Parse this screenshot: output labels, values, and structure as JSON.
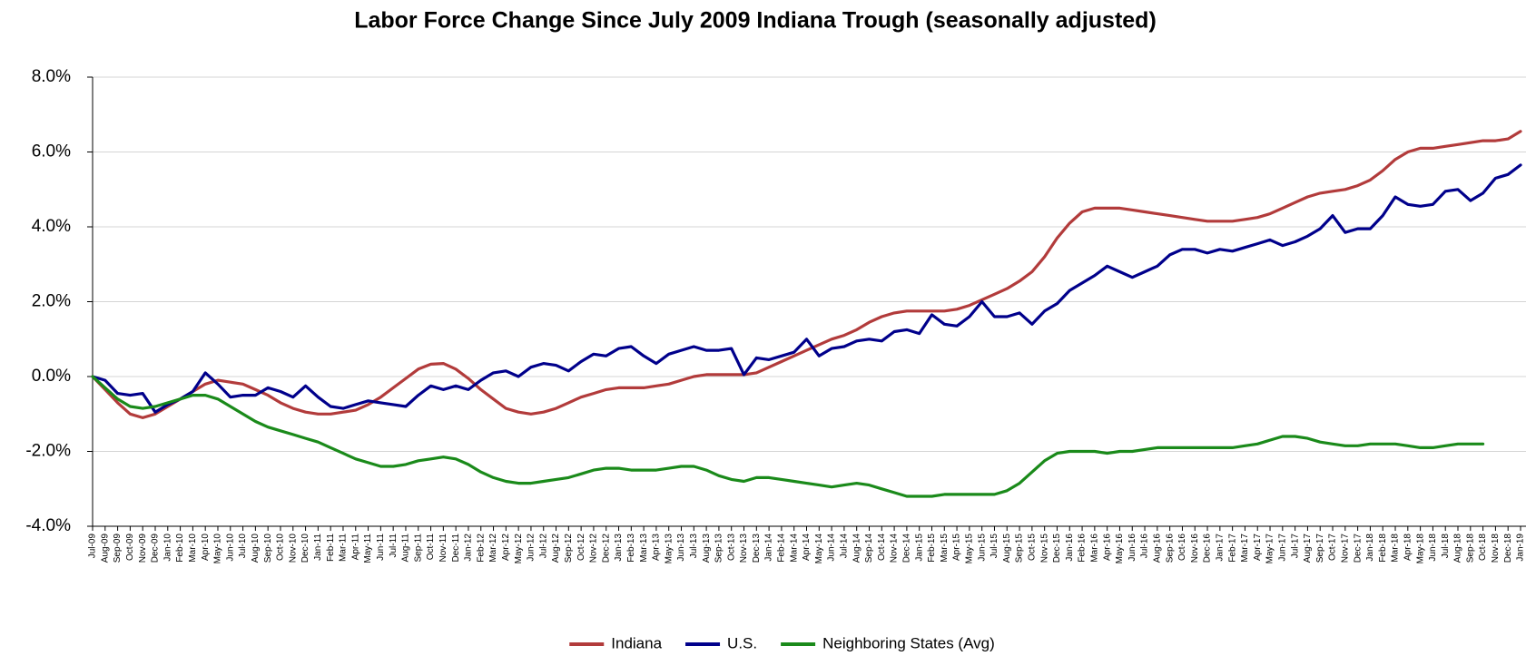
{
  "chart_data": {
    "type": "line",
    "title": "Labor Force Change Since July 2009 Indiana Trough (seasonally adjusted)",
    "categories": [
      "Jul-09",
      "Aug-09",
      "Sep-09",
      "Oct-09",
      "Nov-09",
      "Dec-09",
      "Jan-10",
      "Feb-10",
      "Mar-10",
      "Apr-10",
      "May-10",
      "Jun-10",
      "Jul-10",
      "Aug-10",
      "Sep-10",
      "Oct-10",
      "Nov-10",
      "Dec-10",
      "Jan-11",
      "Feb-11",
      "Mar-11",
      "Apr-11",
      "May-11",
      "Jun-11",
      "Jul-11",
      "Aug-11",
      "Sep-11",
      "Oct-11",
      "Nov-11",
      "Dec-11",
      "Jan-12",
      "Feb-12",
      "Mar-12",
      "Apr-12",
      "May-12",
      "Jun-12",
      "Jul-12",
      "Aug-12",
      "Sep-12",
      "Oct-12",
      "Nov-12",
      "Dec-12",
      "Jan-13",
      "Feb-13",
      "Mar-13",
      "Apr-13",
      "May-13",
      "Jun-13",
      "Jul-13",
      "Aug-13",
      "Sep-13",
      "Oct-13",
      "Nov-13",
      "Dec-13",
      "Jan-14",
      "Feb-14",
      "Mar-14",
      "Apr-14",
      "May-14",
      "Jun-14",
      "Jul-14",
      "Aug-14",
      "Sep-14",
      "Oct-14",
      "Nov-14",
      "Dec-14",
      "Jan-15",
      "Feb-15",
      "Mar-15",
      "Apr-15",
      "May-15",
      "Jun-15",
      "Jul-15",
      "Aug-15",
      "Sep-15",
      "Oct-15",
      "Nov-15",
      "Dec-15",
      "Jan-16",
      "Feb-16",
      "Mar-16",
      "Apr-16",
      "May-16",
      "Jun-16",
      "Jul-16",
      "Aug-16",
      "Sep-16",
      "Oct-16",
      "Nov-16",
      "Dec-16",
      "Jan-17",
      "Feb-17",
      "Mar-17",
      "Apr-17",
      "May-17",
      "Jun-17",
      "Jul-17",
      "Aug-17",
      "Sep-17",
      "Oct-17",
      "Nov-17",
      "Dec-17",
      "Jan-18",
      "Feb-18",
      "Mar-18",
      "Apr-18",
      "May-18",
      "Jun-18",
      "Jul-18",
      "Aug-18",
      "Sep-18",
      "Oct-18",
      "Nov-18",
      "Dec-18",
      "Jan-19"
    ],
    "series": [
      {
        "name": "Indiana",
        "color": "#b23b3b",
        "values": [
          0,
          -0.35,
          -0.7,
          -1.0,
          -1.1,
          -1.0,
          -0.8,
          -0.6,
          -0.4,
          -0.2,
          -0.1,
          -0.15,
          -0.2,
          -0.35,
          -0.5,
          -0.7,
          -0.85,
          -0.95,
          -1.0,
          -1.0,
          -0.95,
          -0.9,
          -0.75,
          -0.55,
          -0.3,
          -0.05,
          0.2,
          0.33,
          0.35,
          0.2,
          -0.05,
          -0.35,
          -0.6,
          -0.85,
          -0.95,
          -1.0,
          -0.95,
          -0.85,
          -0.7,
          -0.55,
          -0.45,
          -0.35,
          -0.3,
          -0.3,
          -0.3,
          -0.25,
          -0.2,
          -0.1,
          0.0,
          0.05,
          0.05,
          0.05,
          0.05,
          0.1,
          0.25,
          0.4,
          0.55,
          0.7,
          0.85,
          1.0,
          1.1,
          1.25,
          1.45,
          1.6,
          1.7,
          1.75,
          1.75,
          1.75,
          1.75,
          1.8,
          1.9,
          2.05,
          2.2,
          2.35,
          2.55,
          2.8,
          3.2,
          3.7,
          4.1,
          4.4,
          4.5,
          4.5,
          4.5,
          4.45,
          4.4,
          4.35,
          4.3,
          4.25,
          4.2,
          4.15,
          4.15,
          4.15,
          4.2,
          4.25,
          4.35,
          4.5,
          4.65,
          4.8,
          4.9,
          4.95,
          5.0,
          5.1,
          5.25,
          5.5,
          5.8,
          6.0,
          6.1,
          6.1,
          6.15,
          6.2,
          6.25,
          6.3,
          6.3,
          6.35,
          6.55
        ]
      },
      {
        "name": "U.S.",
        "color": "#00008b",
        "values": [
          0,
          -0.1,
          -0.45,
          -0.5,
          -0.45,
          -0.95,
          -0.75,
          -0.6,
          -0.4,
          0.1,
          -0.2,
          -0.55,
          -0.5,
          -0.5,
          -0.3,
          -0.4,
          -0.55,
          -0.25,
          -0.55,
          -0.8,
          -0.85,
          -0.75,
          -0.65,
          -0.7,
          -0.75,
          -0.8,
          -0.5,
          -0.25,
          -0.35,
          -0.25,
          -0.35,
          -0.1,
          0.1,
          0.15,
          0.0,
          0.25,
          0.35,
          0.3,
          0.15,
          0.4,
          0.6,
          0.55,
          0.75,
          0.8,
          0.55,
          0.35,
          0.6,
          0.7,
          0.8,
          0.7,
          0.7,
          0.75,
          0.05,
          0.5,
          0.45,
          0.55,
          0.65,
          1.0,
          0.55,
          0.75,
          0.8,
          0.95,
          1.0,
          0.95,
          1.2,
          1.25,
          1.15,
          1.65,
          1.4,
          1.35,
          1.6,
          2.0,
          1.6,
          1.6,
          1.7,
          1.4,
          1.75,
          1.95,
          2.3,
          2.5,
          2.7,
          2.95,
          2.8,
          2.65,
          2.8,
          2.95,
          3.25,
          3.4,
          3.4,
          3.3,
          3.4,
          3.35,
          3.45,
          3.55,
          3.65,
          3.5,
          3.6,
          3.75,
          3.95,
          4.3,
          3.85,
          3.95,
          3.95,
          4.3,
          4.8,
          4.6,
          4.55,
          4.6,
          4.95,
          5.0,
          4.7,
          4.9,
          5.3,
          5.4,
          5.65
        ]
      },
      {
        "name": "Neighboring States (Avg)",
        "color": "#1a8a1a",
        "values": [
          0,
          -0.3,
          -0.6,
          -0.8,
          -0.85,
          -0.8,
          -0.7,
          -0.6,
          -0.5,
          -0.5,
          -0.6,
          -0.8,
          -1.0,
          -1.2,
          -1.35,
          -1.45,
          -1.55,
          -1.65,
          -1.75,
          -1.9,
          -2.05,
          -2.2,
          -2.3,
          -2.4,
          -2.4,
          -2.35,
          -2.25,
          -2.2,
          -2.15,
          -2.2,
          -2.35,
          -2.55,
          -2.7,
          -2.8,
          -2.85,
          -2.85,
          -2.8,
          -2.75,
          -2.7,
          -2.6,
          -2.5,
          -2.45,
          -2.45,
          -2.5,
          -2.5,
          -2.5,
          -2.45,
          -2.4,
          -2.4,
          -2.5,
          -2.65,
          -2.75,
          -2.8,
          -2.7,
          -2.7,
          -2.75,
          -2.8,
          -2.85,
          -2.9,
          -2.95,
          -2.9,
          -2.85,
          -2.9,
          -3.0,
          -3.1,
          -3.2,
          -3.2,
          -3.2,
          -3.15,
          -3.15,
          -3.15,
          -3.15,
          -3.15,
          -3.05,
          -2.85,
          -2.55,
          -2.25,
          -2.05,
          -2.0,
          -2.0,
          -2.0,
          -2.05,
          -2.0,
          -2.0,
          -1.95,
          -1.9,
          -1.9,
          -1.9,
          -1.9,
          -1.9,
          -1.9,
          -1.9,
          -1.85,
          -1.8,
          -1.7,
          -1.6,
          -1.6,
          -1.65,
          -1.75,
          -1.8,
          -1.85,
          -1.85,
          -1.8,
          -1.8,
          -1.8,
          -1.85,
          -1.9,
          -1.9,
          -1.85,
          -1.8,
          -1.8,
          -1.8,
          null,
          null,
          null
        ]
      }
    ],
    "ylim": [
      -4,
      8
    ],
    "yticks": [
      {
        "value": -4,
        "label": "-4.0%"
      },
      {
        "value": -2,
        "label": "-2.0%"
      },
      {
        "value": 0,
        "label": "0.0%"
      },
      {
        "value": 2,
        "label": "2.0%"
      },
      {
        "value": 4,
        "label": "4.0%"
      },
      {
        "value": 6,
        "label": "6.0%"
      },
      {
        "value": 8,
        "label": "8.0%"
      }
    ],
    "grid": true,
    "legend": "bottom"
  }
}
